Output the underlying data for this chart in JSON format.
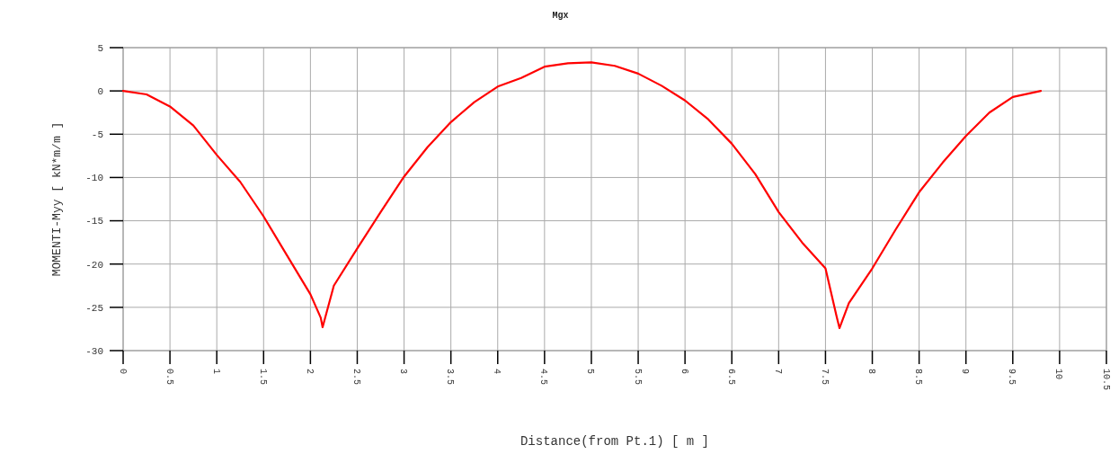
{
  "chart_data": {
    "type": "line",
    "title": "Mgx",
    "xlabel": "Distance(from Pt.1) [ m ]",
    "ylabel": "MOMENTI-Myy [ kN*m/m ]",
    "xlim": [
      0,
      10.5
    ],
    "xticks": [
      0,
      0.5,
      1,
      1.5,
      2,
      2.5,
      3,
      3.5,
      4,
      4.5,
      5,
      5.5,
      6,
      6.5,
      7,
      7.5,
      8,
      8.5,
      9,
      9.5,
      10,
      10.5
    ],
    "ylim": [
      -30,
      5
    ],
    "yticks": [
      -30,
      -25,
      -20,
      -15,
      -10,
      -5,
      0,
      5
    ],
    "grid": true,
    "series": [
      {
        "color": "#ff0000",
        "x": [
          0,
          0.25,
          0.5,
          0.75,
          1,
          1.25,
          1.5,
          1.75,
          2,
          2.11,
          2.13,
          2.25,
          2.5,
          2.75,
          3,
          3.25,
          3.5,
          3.75,
          4,
          4.25,
          4.5,
          4.75,
          5,
          5.25,
          5.5,
          5.75,
          6,
          6.25,
          6.5,
          6.75,
          7,
          7.25,
          7.5,
          7.62,
          7.65,
          7.75,
          8,
          8.25,
          8.5,
          8.75,
          9,
          9.25,
          9.5,
          9.8
        ],
        "values": [
          0,
          -0.4,
          -1.8,
          -4,
          -7.4,
          -10.5,
          -14.5,
          -19,
          -23.5,
          -26.2,
          -27.3,
          -22.5,
          -18.2,
          -14,
          -9.9,
          -6.5,
          -3.6,
          -1.3,
          0.5,
          1.5,
          2.8,
          3.2,
          3.3,
          2.9,
          2,
          0.6,
          -1.1,
          -3.3,
          -6.1,
          -9.6,
          -14,
          -17.5,
          -20.5,
          -26.1,
          -27.4,
          -24.5,
          -20.5,
          -16,
          -11.7,
          -8.3,
          -5.2,
          -2.5,
          -0.7,
          0
        ]
      }
    ]
  }
}
